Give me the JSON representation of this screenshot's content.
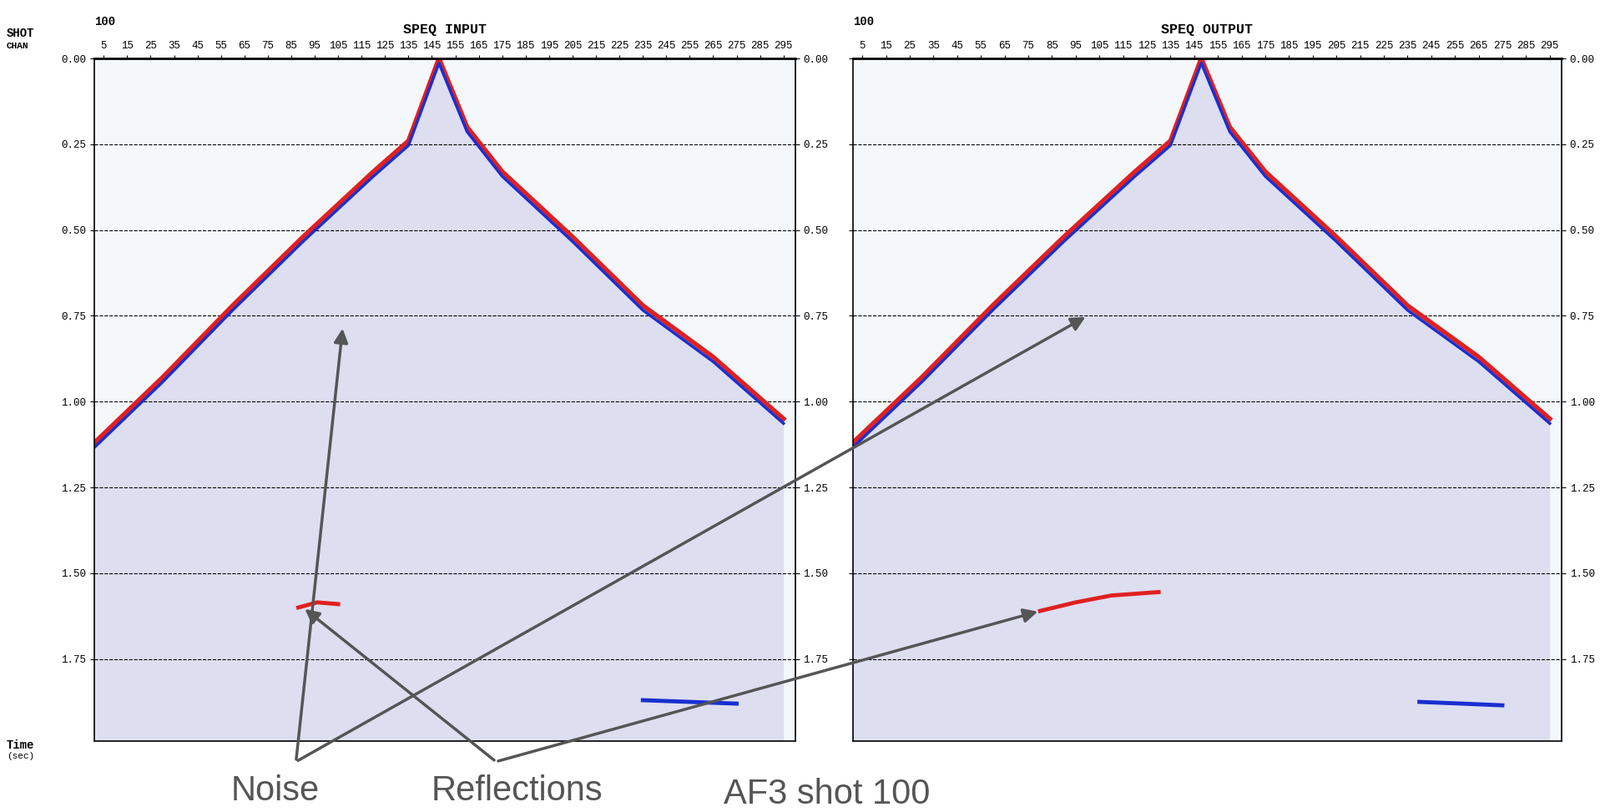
{
  "chart_data": [
    {
      "type": "seismic_gather",
      "title": "SPEQ INPUT",
      "shot_number": "100",
      "xlim": [
        1,
        300
      ],
      "xticks": [
        5,
        15,
        25,
        35,
        45,
        55,
        65,
        75,
        85,
        95,
        105,
        115,
        125,
        135,
        145,
        155,
        165,
        175,
        185,
        195,
        205,
        215,
        225,
        235,
        245,
        255,
        265,
        275,
        285,
        295
      ],
      "ylim": [
        0,
        1.99
      ],
      "yticks": [
        {
          "value": 0,
          "label": "0.00"
        },
        {
          "value": 0.25,
          "label": "0.25"
        },
        {
          "value": 0.5,
          "label": "0.50"
        },
        {
          "value": 0.75,
          "label": "0.75"
        },
        {
          "value": 1.0,
          "label": "1.00"
        },
        {
          "value": 1.25,
          "label": "1.25"
        },
        {
          "value": 1.5,
          "label": "1.50"
        },
        {
          "value": 1.75,
          "label": "1.75"
        }
      ],
      "grid": true,
      "first_break": {
        "color": "#e02020",
        "x": [
          1,
          30,
          60,
          90,
          120,
          135,
          148,
          160,
          175,
          205,
          235,
          265,
          295
        ],
        "y": [
          1.12,
          0.93,
          0.72,
          0.52,
          0.33,
          0.24,
          0.0,
          0.2,
          0.33,
          0.52,
          0.72,
          0.87,
          1.05
        ]
      },
      "events": [
        {
          "color": "#e02020",
          "x": [
            88,
            96,
            105
          ],
          "y": [
            1.6,
            1.585,
            1.59
          ]
        },
        {
          "color": "#1a2fd0",
          "x": [
            235,
            255,
            275
          ],
          "y": [
            1.87,
            1.875,
            1.88
          ]
        }
      ]
    },
    {
      "type": "seismic_gather",
      "title": "SPEQ OUTPUT",
      "shot_number": "100",
      "xlim": [
        1,
        300
      ],
      "xticks": [
        5,
        15,
        25,
        35,
        45,
        55,
        65,
        75,
        85,
        95,
        105,
        115,
        125,
        135,
        145,
        155,
        165,
        175,
        185,
        195,
        205,
        215,
        225,
        235,
        245,
        255,
        265,
        275,
        285,
        295
      ],
      "ylim": [
        0,
        1.99
      ],
      "yticks": [
        {
          "value": 0,
          "label": "0.00"
        },
        {
          "value": 0.25,
          "label": "0.25"
        },
        {
          "value": 0.5,
          "label": "0.50"
        },
        {
          "value": 0.75,
          "label": "0.75"
        },
        {
          "value": 1.0,
          "label": "1.00"
        },
        {
          "value": 1.25,
          "label": "1.25"
        },
        {
          "value": 1.5,
          "label": "1.50"
        },
        {
          "value": 1.75,
          "label": "1.75"
        }
      ],
      "grid": true,
      "first_break": {
        "color": "#e02020",
        "x": [
          1,
          30,
          60,
          90,
          120,
          135,
          148,
          160,
          175,
          205,
          235,
          265,
          295
        ],
        "y": [
          1.12,
          0.93,
          0.72,
          0.52,
          0.33,
          0.24,
          0.0,
          0.2,
          0.33,
          0.52,
          0.72,
          0.87,
          1.05
        ]
      },
      "events": [
        {
          "color": "#e02020",
          "x": [
            80,
            95,
            110,
            130
          ],
          "y": [
            1.61,
            1.585,
            1.565,
            1.555
          ]
        },
        {
          "color": "#1a2fd0",
          "x": [
            240,
            258,
            275
          ],
          "y": [
            1.875,
            1.88,
            1.885
          ]
        }
      ]
    }
  ],
  "header": {
    "shot_label": "SHOT",
    "chan_label": "CHAN"
  },
  "time_label": [
    "Time",
    "(sec)"
  ],
  "annotations": [
    {
      "text": "Noise",
      "targets": [
        {
          "panel": 0,
          "x": 107,
          "y": 0.78
        },
        {
          "panel": 1,
          "x": 100,
          "y": 0.75
        }
      ]
    },
    {
      "text": "Reflections",
      "targets": [
        {
          "panel": 0,
          "x": 90,
          "y": 1.6
        },
        {
          "panel": 1,
          "x": 80,
          "y": 1.61
        }
      ]
    }
  ],
  "caption": "AF3 shot 100"
}
